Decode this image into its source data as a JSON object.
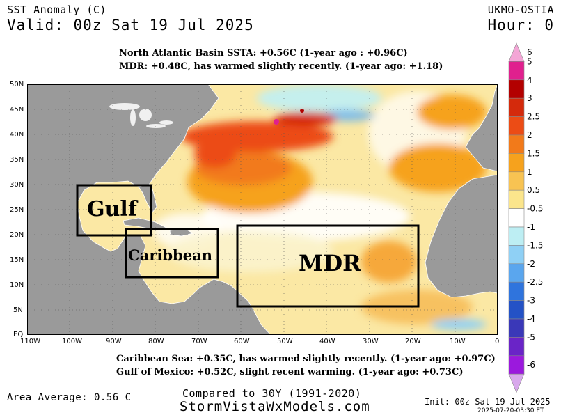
{
  "header": {
    "title": "SST Anomaly (C)",
    "valid": "Valid: 00z Sat 19 Jul 2025",
    "model": "UKMO-OSTIA",
    "hour": "Hour: 0"
  },
  "annotations": {
    "top_line1": "North Atlantic Basin SSTA: +0.56C (1-year ago : +0.96C)",
    "top_line2": "MDR: +0.48C, has warmed slightly recently. (1-year ago: +1.18)",
    "bottom_line1": "Caribbean Sea: +0.35C, has warmed slightly recently. (1-year ago: +0.97C)",
    "bottom_line2": "Gulf of Mexico: +0.52C, slight recent warming. (1-year ago: +0.73C)"
  },
  "regions": {
    "gulf": "Gulf",
    "caribbean": "Caribbean",
    "mdr": "MDR"
  },
  "axes": {
    "lat_labels": [
      "50N",
      "45N",
      "40N",
      "35N",
      "30N",
      "25N",
      "20N",
      "15N",
      "10N",
      "5N",
      "EQ"
    ],
    "lon_labels": [
      "110W",
      "100W",
      "90W",
      "80W",
      "70W",
      "60W",
      "50W",
      "40W",
      "30W",
      "20W",
      "10W",
      "0"
    ]
  },
  "colorbar": {
    "labels": [
      "6",
      "5",
      "4",
      "3",
      "2.5",
      "2",
      "1.5",
      "1",
      "0.5",
      "-0.5",
      "-1",
      "-1.5",
      "-2",
      "-2.5",
      "-3",
      "-4",
      "-5",
      "-6"
    ],
    "colors": [
      "#f3a6d6",
      "#e0208e",
      "#b30000",
      "#d42a0c",
      "#ec4c15",
      "#f27a1a",
      "#f6a21d",
      "#f8c352",
      "#fbe58c",
      "#ffffff",
      "#bdeef3",
      "#8fd0f5",
      "#5aa6ee",
      "#2f74dd",
      "#2452c6",
      "#3a38b8",
      "#6a24c7",
      "#9b19dd",
      "#d8a8ec"
    ]
  },
  "footer": {
    "area_average": "Area Average: 0.56 C",
    "compared": "Compared to 30Y (1991-2020)",
    "site": "StormVistaWxModels.com",
    "init": "Init: 00z Sat 19 Jul 2025",
    "timestamp": "2025-07-20-03:30 ET"
  }
}
